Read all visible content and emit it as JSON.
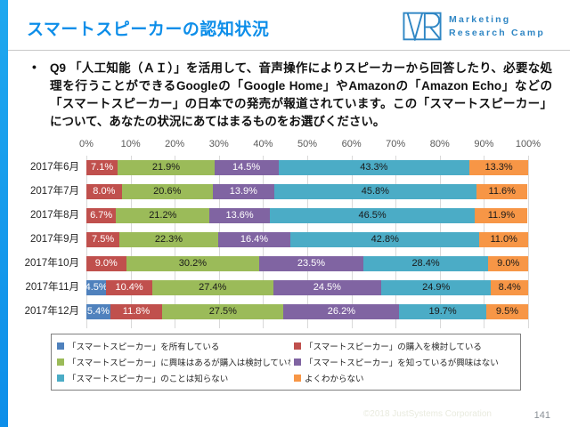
{
  "header": {
    "title": "スマートスピーカーの認知状況",
    "logo": {
      "brand": "VR",
      "line1": "Marketing",
      "line2": "Research Camp"
    }
  },
  "question": {
    "bullet": "•",
    "text": "Q9 「人工知能（ＡＩ）」を活用して、音声操作によりスピーカーから回答したり、必要な処理を行うことができるGoogleの「Google Home」やAmazonの「Amazon Echo」などの「スマートスピーカー」の日本での発売が報道されています。この「スマートスピーカー」について、あなたの状況にあてはまるものをお選びください。"
  },
  "chart_data": {
    "type": "bar",
    "orientation": "horizontal",
    "stacked": true,
    "grid": true,
    "legend_position": "bottom",
    "xlim": [
      0,
      100
    ],
    "x_ticks": [
      "0%",
      "10%",
      "20%",
      "30%",
      "40%",
      "50%",
      "60%",
      "70%",
      "80%",
      "90%",
      "100%"
    ],
    "categories": [
      "2017年6月",
      "2017年7月",
      "2017年8月",
      "2017年9月",
      "2017年10月",
      "2017年11月",
      "2017年12月"
    ],
    "series": [
      {
        "name": "「スマートスピーカー」を所有している",
        "color": "#4F81BD",
        "label_color": "#ffffff",
        "values": [
          0,
          0,
          0,
          0,
          0,
          4.5,
          5.4
        ]
      },
      {
        "name": "「スマートスピーカー」の購入を検討している",
        "color": "#C0504D",
        "label_color": "#ffffff",
        "values": [
          7.1,
          8.0,
          6.7,
          7.5,
          9.0,
          10.4,
          11.8
        ]
      },
      {
        "name": "「スマートスピーカー」に興味はあるが購入は検討していない",
        "color": "#9BBB59",
        "label_color": "#1a1a1a",
        "values": [
          21.9,
          20.6,
          21.2,
          22.3,
          30.2,
          27.4,
          27.5
        ]
      },
      {
        "name": "「スマートスピーカー」を知っているが興味はない",
        "color": "#8064A2",
        "label_color": "#ffffff",
        "values": [
          14.5,
          13.9,
          13.6,
          16.4,
          23.5,
          24.5,
          26.2
        ]
      },
      {
        "name": "「スマートスピーカー」のことは知らない",
        "color": "#4BACC6",
        "label_color": "#1a1a1a",
        "values": [
          43.3,
          45.8,
          46.5,
          42.8,
          28.4,
          24.9,
          19.7
        ]
      },
      {
        "name": "よくわからない",
        "color": "#F79646",
        "label_color": "#1a1a1a",
        "values": [
          13.3,
          11.6,
          11.9,
          11.0,
          9.0,
          8.4,
          9.5
        ]
      }
    ]
  },
  "footer": {
    "copyright": "©2018 JustSystems Corporation",
    "page_number": "141"
  },
  "colors": {
    "accent_blue": "#119BE8",
    "title_blue": "#0D8EE9",
    "logo_blue": "#2F86C4"
  }
}
